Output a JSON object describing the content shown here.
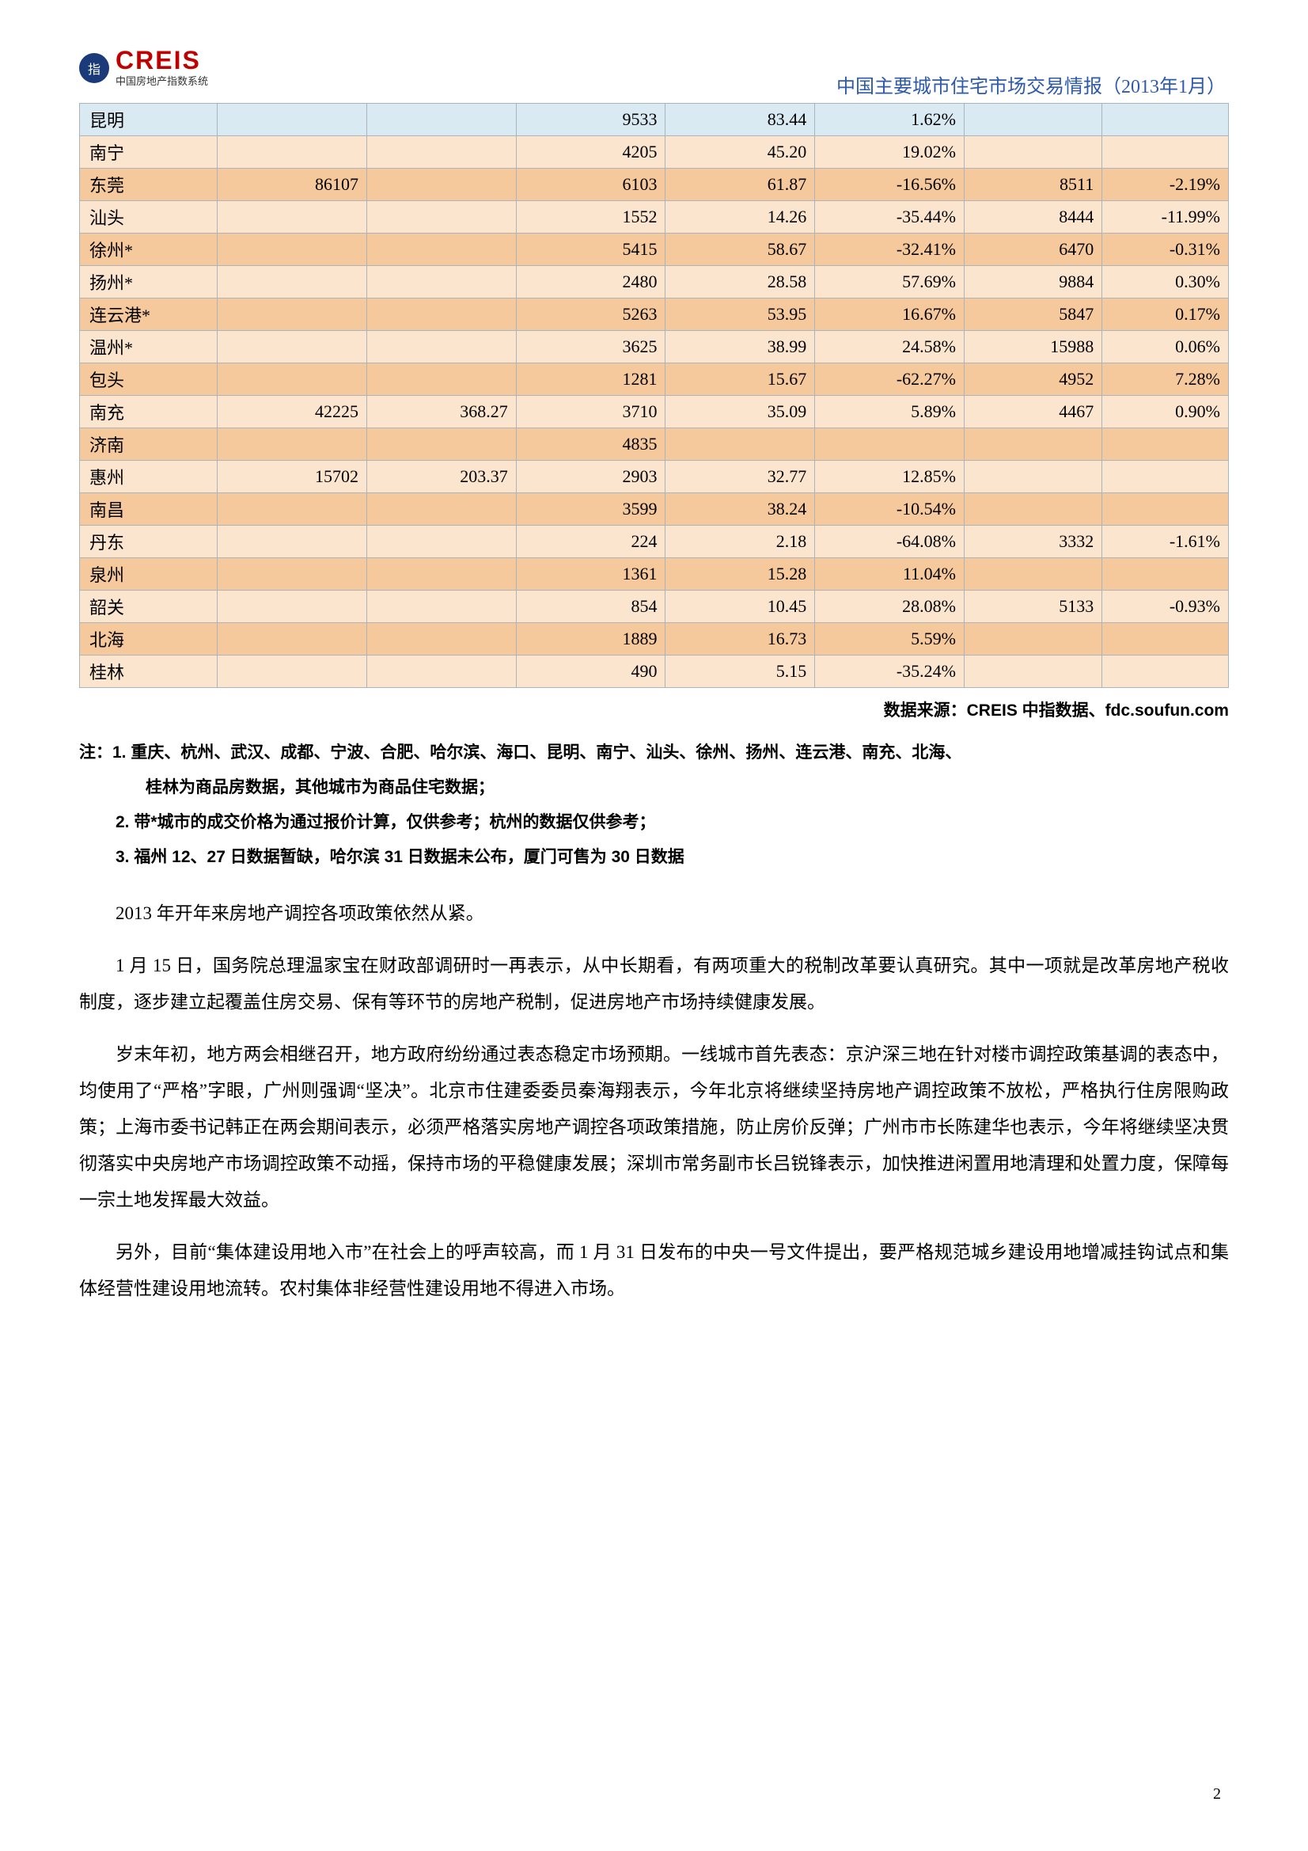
{
  "logo": {
    "brand": "CREIS",
    "subtitle": "中国房地产指数系统"
  },
  "doc_title": "中国主要城市住宅市场交易情报（2013年1月）",
  "table": {
    "colors": {
      "odd_bg": "#f6c99c",
      "even_bg": "#fbe5cf",
      "header_bg": "#d9eaf3",
      "border": "#aab4bd"
    },
    "rows": [
      {
        "city": "昆明",
        "vals": [
          "",
          "",
          "9533",
          "83.44",
          "1.62%",
          "",
          ""
        ],
        "stripe": "head"
      },
      {
        "city": "南宁",
        "vals": [
          "",
          "",
          "4205",
          "45.20",
          "19.02%",
          "",
          ""
        ],
        "stripe": "even"
      },
      {
        "city": "东莞",
        "vals": [
          "86107",
          "",
          "6103",
          "61.87",
          "-16.56%",
          "8511",
          "-2.19%"
        ],
        "stripe": "odd"
      },
      {
        "city": "汕头",
        "vals": [
          "",
          "",
          "1552",
          "14.26",
          "-35.44%",
          "8444",
          "-11.99%"
        ],
        "stripe": "even"
      },
      {
        "city": "徐州*",
        "vals": [
          "",
          "",
          "5415",
          "58.67",
          "-32.41%",
          "6470",
          "-0.31%"
        ],
        "stripe": "odd"
      },
      {
        "city": "扬州*",
        "vals": [
          "",
          "",
          "2480",
          "28.58",
          "57.69%",
          "9884",
          "0.30%"
        ],
        "stripe": "even"
      },
      {
        "city": "连云港*",
        "vals": [
          "",
          "",
          "5263",
          "53.95",
          "16.67%",
          "5847",
          "0.17%"
        ],
        "stripe": "odd"
      },
      {
        "city": "温州*",
        "vals": [
          "",
          "",
          "3625",
          "38.99",
          "24.58%",
          "15988",
          "0.06%"
        ],
        "stripe": "even"
      },
      {
        "city": "包头",
        "vals": [
          "",
          "",
          "1281",
          "15.67",
          "-62.27%",
          "4952",
          "7.28%"
        ],
        "stripe": "odd"
      },
      {
        "city": "南充",
        "vals": [
          "42225",
          "368.27",
          "3710",
          "35.09",
          "5.89%",
          "4467",
          "0.90%"
        ],
        "stripe": "even"
      },
      {
        "city": "济南",
        "vals": [
          "",
          "",
          "4835",
          "",
          "",
          "",
          ""
        ],
        "stripe": "odd"
      },
      {
        "city": "惠州",
        "vals": [
          "15702",
          "203.37",
          "2903",
          "32.77",
          "12.85%",
          "",
          ""
        ],
        "stripe": "even"
      },
      {
        "city": "南昌",
        "vals": [
          "",
          "",
          "3599",
          "38.24",
          "-10.54%",
          "",
          ""
        ],
        "stripe": "odd"
      },
      {
        "city": "丹东",
        "vals": [
          "",
          "",
          "224",
          "2.18",
          "-64.08%",
          "3332",
          "-1.61%"
        ],
        "stripe": "even"
      },
      {
        "city": "泉州",
        "vals": [
          "",
          "",
          "1361",
          "15.28",
          "11.04%",
          "",
          ""
        ],
        "stripe": "odd"
      },
      {
        "city": "韶关",
        "vals": [
          "",
          "",
          "854",
          "10.45",
          "28.08%",
          "5133",
          "-0.93%"
        ],
        "stripe": "even"
      },
      {
        "city": "北海",
        "vals": [
          "",
          "",
          "1889",
          "16.73",
          "5.59%",
          "",
          ""
        ],
        "stripe": "odd"
      },
      {
        "city": "桂林",
        "vals": [
          "",
          "",
          "490",
          "5.15",
          "-35.24%",
          "",
          ""
        ],
        "stripe": "even"
      }
    ]
  },
  "source": "数据来源：CREIS 中指数据、fdc.soufun.com",
  "notes": {
    "line1a": "注：1. 重庆、杭州、武汉、成都、宁波、合肥、哈尔滨、海口、昆明、南宁、汕头、徐州、扬州、连云港、南充、北海、",
    "line1b": "桂林为商品房数据，其他城市为商品住宅数据；",
    "line2": "2. 带*城市的成交价格为通过报价计算，仅供参考；杭州的数据仅供参考；",
    "line3": "3. 福州 12、27 日数据暂缺，哈尔滨 31 日数据未公布，厦门可售为 30 日数据"
  },
  "paragraphs": {
    "p1": "2013 年开年来房地产调控各项政策依然从紧。",
    "p2": "1 月 15 日，国务院总理温家宝在财政部调研时一再表示，从中长期看，有两项重大的税制改革要认真研究。其中一项就是改革房地产税收制度，逐步建立起覆盖住房交易、保有等环节的房地产税制，促进房地产市场持续健康发展。",
    "p3": "岁末年初，地方两会相继召开，地方政府纷纷通过表态稳定市场预期。一线城市首先表态：京沪深三地在针对楼市调控政策基调的表态中，均使用了“严格”字眼，广州则强调“坚决”。北京市住建委委员秦海翔表示，今年北京将继续坚持房地产调控政策不放松，严格执行住房限购政策；上海市委书记韩正在两会期间表示，必须严格落实房地产调控各项政策措施，防止房价反弹；广州市市长陈建华也表示，今年将继续坚决贯彻落实中央房地产市场调控政策不动摇，保持市场的平稳健康发展；深圳市常务副市长吕锐锋表示，加快推进闲置用地清理和处置力度，保障每一宗土地发挥最大效益。",
    "p4": "另外，目前“集体建设用地入市”在社会上的呼声较高，而 1 月 31 日发布的中央一号文件提出，要严格规范城乡建设用地增减挂钩试点和集体经营性建设用地流转。农村集体非经营性建设用地不得进入市场。"
  },
  "page_num": "2"
}
